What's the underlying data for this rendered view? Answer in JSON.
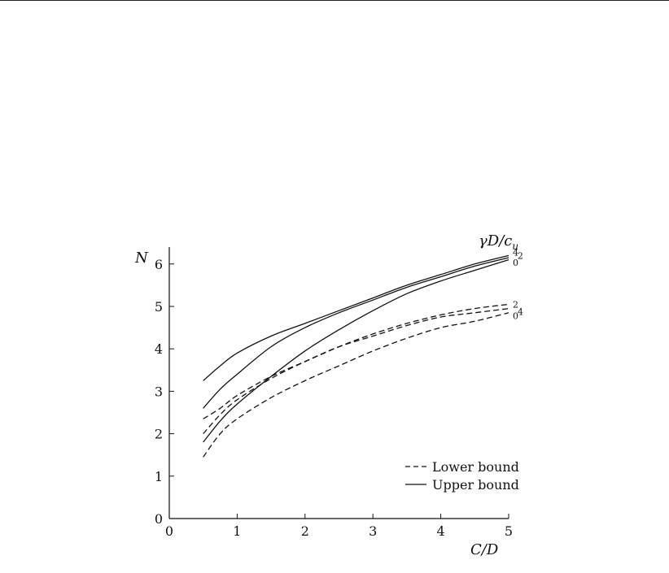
{
  "chart_data": {
    "type": "line",
    "xlabel": "C/D",
    "ylabel": "N",
    "parameter_label": "γD/c_u",
    "xlim": [
      0,
      5
    ],
    "ylim": [
      0,
      6.5
    ],
    "xticks": [
      "0",
      "1",
      "2",
      "3",
      "4",
      "5"
    ],
    "yticks": [
      "0",
      "1",
      "2",
      "3",
      "4",
      "5",
      "6"
    ],
    "grid": false,
    "legend_position": "lower-right",
    "legend": [
      {
        "label": "Lower bound",
        "style": "dashed"
      },
      {
        "label": "Upper bound",
        "style": "solid"
      }
    ],
    "series": [
      {
        "name": "0",
        "bound": "upper",
        "style": "solid",
        "x": [
          0.5,
          0.75,
          1,
          1.5,
          2,
          2.5,
          3,
          3.5,
          4,
          4.5,
          5
        ],
        "y": [
          1.8,
          2.3,
          2.7,
          3.35,
          3.95,
          4.45,
          4.9,
          5.3,
          5.6,
          5.85,
          6.1
        ]
      },
      {
        "name": "2",
        "bound": "upper",
        "style": "solid",
        "x": [
          0.5,
          0.75,
          1,
          1.5,
          2,
          2.5,
          3,
          3.5,
          4,
          4.5,
          5
        ],
        "y": [
          2.6,
          3.05,
          3.4,
          4.05,
          4.5,
          4.85,
          5.15,
          5.45,
          5.7,
          5.95,
          6.15
        ]
      },
      {
        "name": "4",
        "bound": "upper",
        "style": "solid",
        "x": [
          0.5,
          0.75,
          1,
          1.5,
          2,
          2.5,
          3,
          3.5,
          4,
          4.5,
          5
        ],
        "y": [
          3.25,
          3.6,
          3.9,
          4.3,
          4.6,
          4.9,
          5.2,
          5.5,
          5.75,
          6.0,
          6.2
        ]
      },
      {
        "name": "0",
        "bound": "lower",
        "style": "dashed",
        "x": [
          0.5,
          0.75,
          1,
          1.5,
          2,
          2.5,
          3,
          3.5,
          4,
          4.5,
          5
        ],
        "y": [
          1.45,
          2.0,
          2.35,
          2.85,
          3.25,
          3.6,
          3.95,
          4.25,
          4.5,
          4.65,
          4.85
        ]
      },
      {
        "name": "2",
        "bound": "lower",
        "style": "dashed",
        "x": [
          0.5,
          0.75,
          1,
          1.5,
          2,
          2.5,
          3,
          3.5,
          4,
          4.5,
          5
        ],
        "y": [
          2.35,
          2.6,
          2.9,
          3.35,
          3.7,
          4.05,
          4.35,
          4.6,
          4.8,
          4.95,
          5.05
        ]
      },
      {
        "name": "4",
        "bound": "lower",
        "style": "dashed",
        "x": [
          0.5,
          0.75,
          1,
          1.5,
          2,
          2.5,
          3,
          3.5,
          4,
          4.5,
          5
        ],
        "y": [
          2.0,
          2.45,
          2.8,
          3.3,
          3.7,
          4.05,
          4.3,
          4.55,
          4.75,
          4.85,
          4.95
        ]
      }
    ],
    "end_labels": [
      {
        "text": "4",
        "x": 5.06,
        "y": 6.27
      },
      {
        "text": "2",
        "x": 5.13,
        "y": 6.2
      },
      {
        "text": "0",
        "x": 5.06,
        "y": 6.03
      },
      {
        "text": "2",
        "x": 5.06,
        "y": 5.05
      },
      {
        "text": "4",
        "x": 5.13,
        "y": 4.88
      },
      {
        "text": "0",
        "x": 5.06,
        "y": 4.78
      }
    ]
  }
}
